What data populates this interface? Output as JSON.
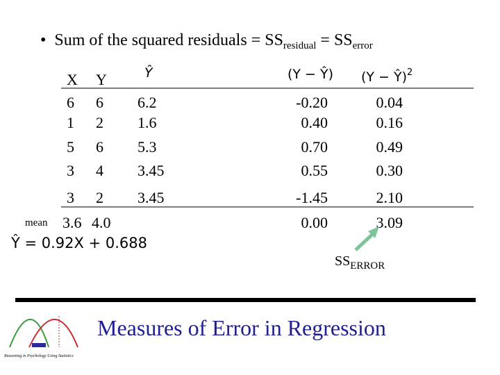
{
  "bullet": {
    "text": "Sum of the squared residuals = SS",
    "sub1": "residual",
    "mid": " = SS",
    "sub2": "error"
  },
  "table": {
    "headers": [
      "X",
      "Y",
      "Ŷ",
      "(Y − Ŷ)",
      "(Y − Ŷ)",
      "2"
    ],
    "rows": [
      [
        "6",
        "6",
        "6.2",
        "-0.20",
        "0.04"
      ],
      [
        "1",
        "2",
        "1.6",
        "0.40",
        "0.16"
      ],
      [
        "5",
        "6",
        "5.3",
        "0.70",
        "0.49"
      ],
      [
        "3",
        "4",
        "3.45",
        "0.55",
        "0.30"
      ],
      [
        "3",
        "2",
        "3.45",
        "-1.45",
        "2.10"
      ]
    ],
    "mean": {
      "label": "mean",
      "x": "3.6",
      "y": "4.0",
      "resid": "0.00",
      "sq": "3.09"
    }
  },
  "equation": "Ŷ = 0.92X + 0.688",
  "annotation": {
    "text": "SS",
    "sub": "ERROR"
  },
  "footer": {
    "title": "Measures of Error in Regression",
    "caption": "Reasoning in Psychology Using Statistics"
  }
}
